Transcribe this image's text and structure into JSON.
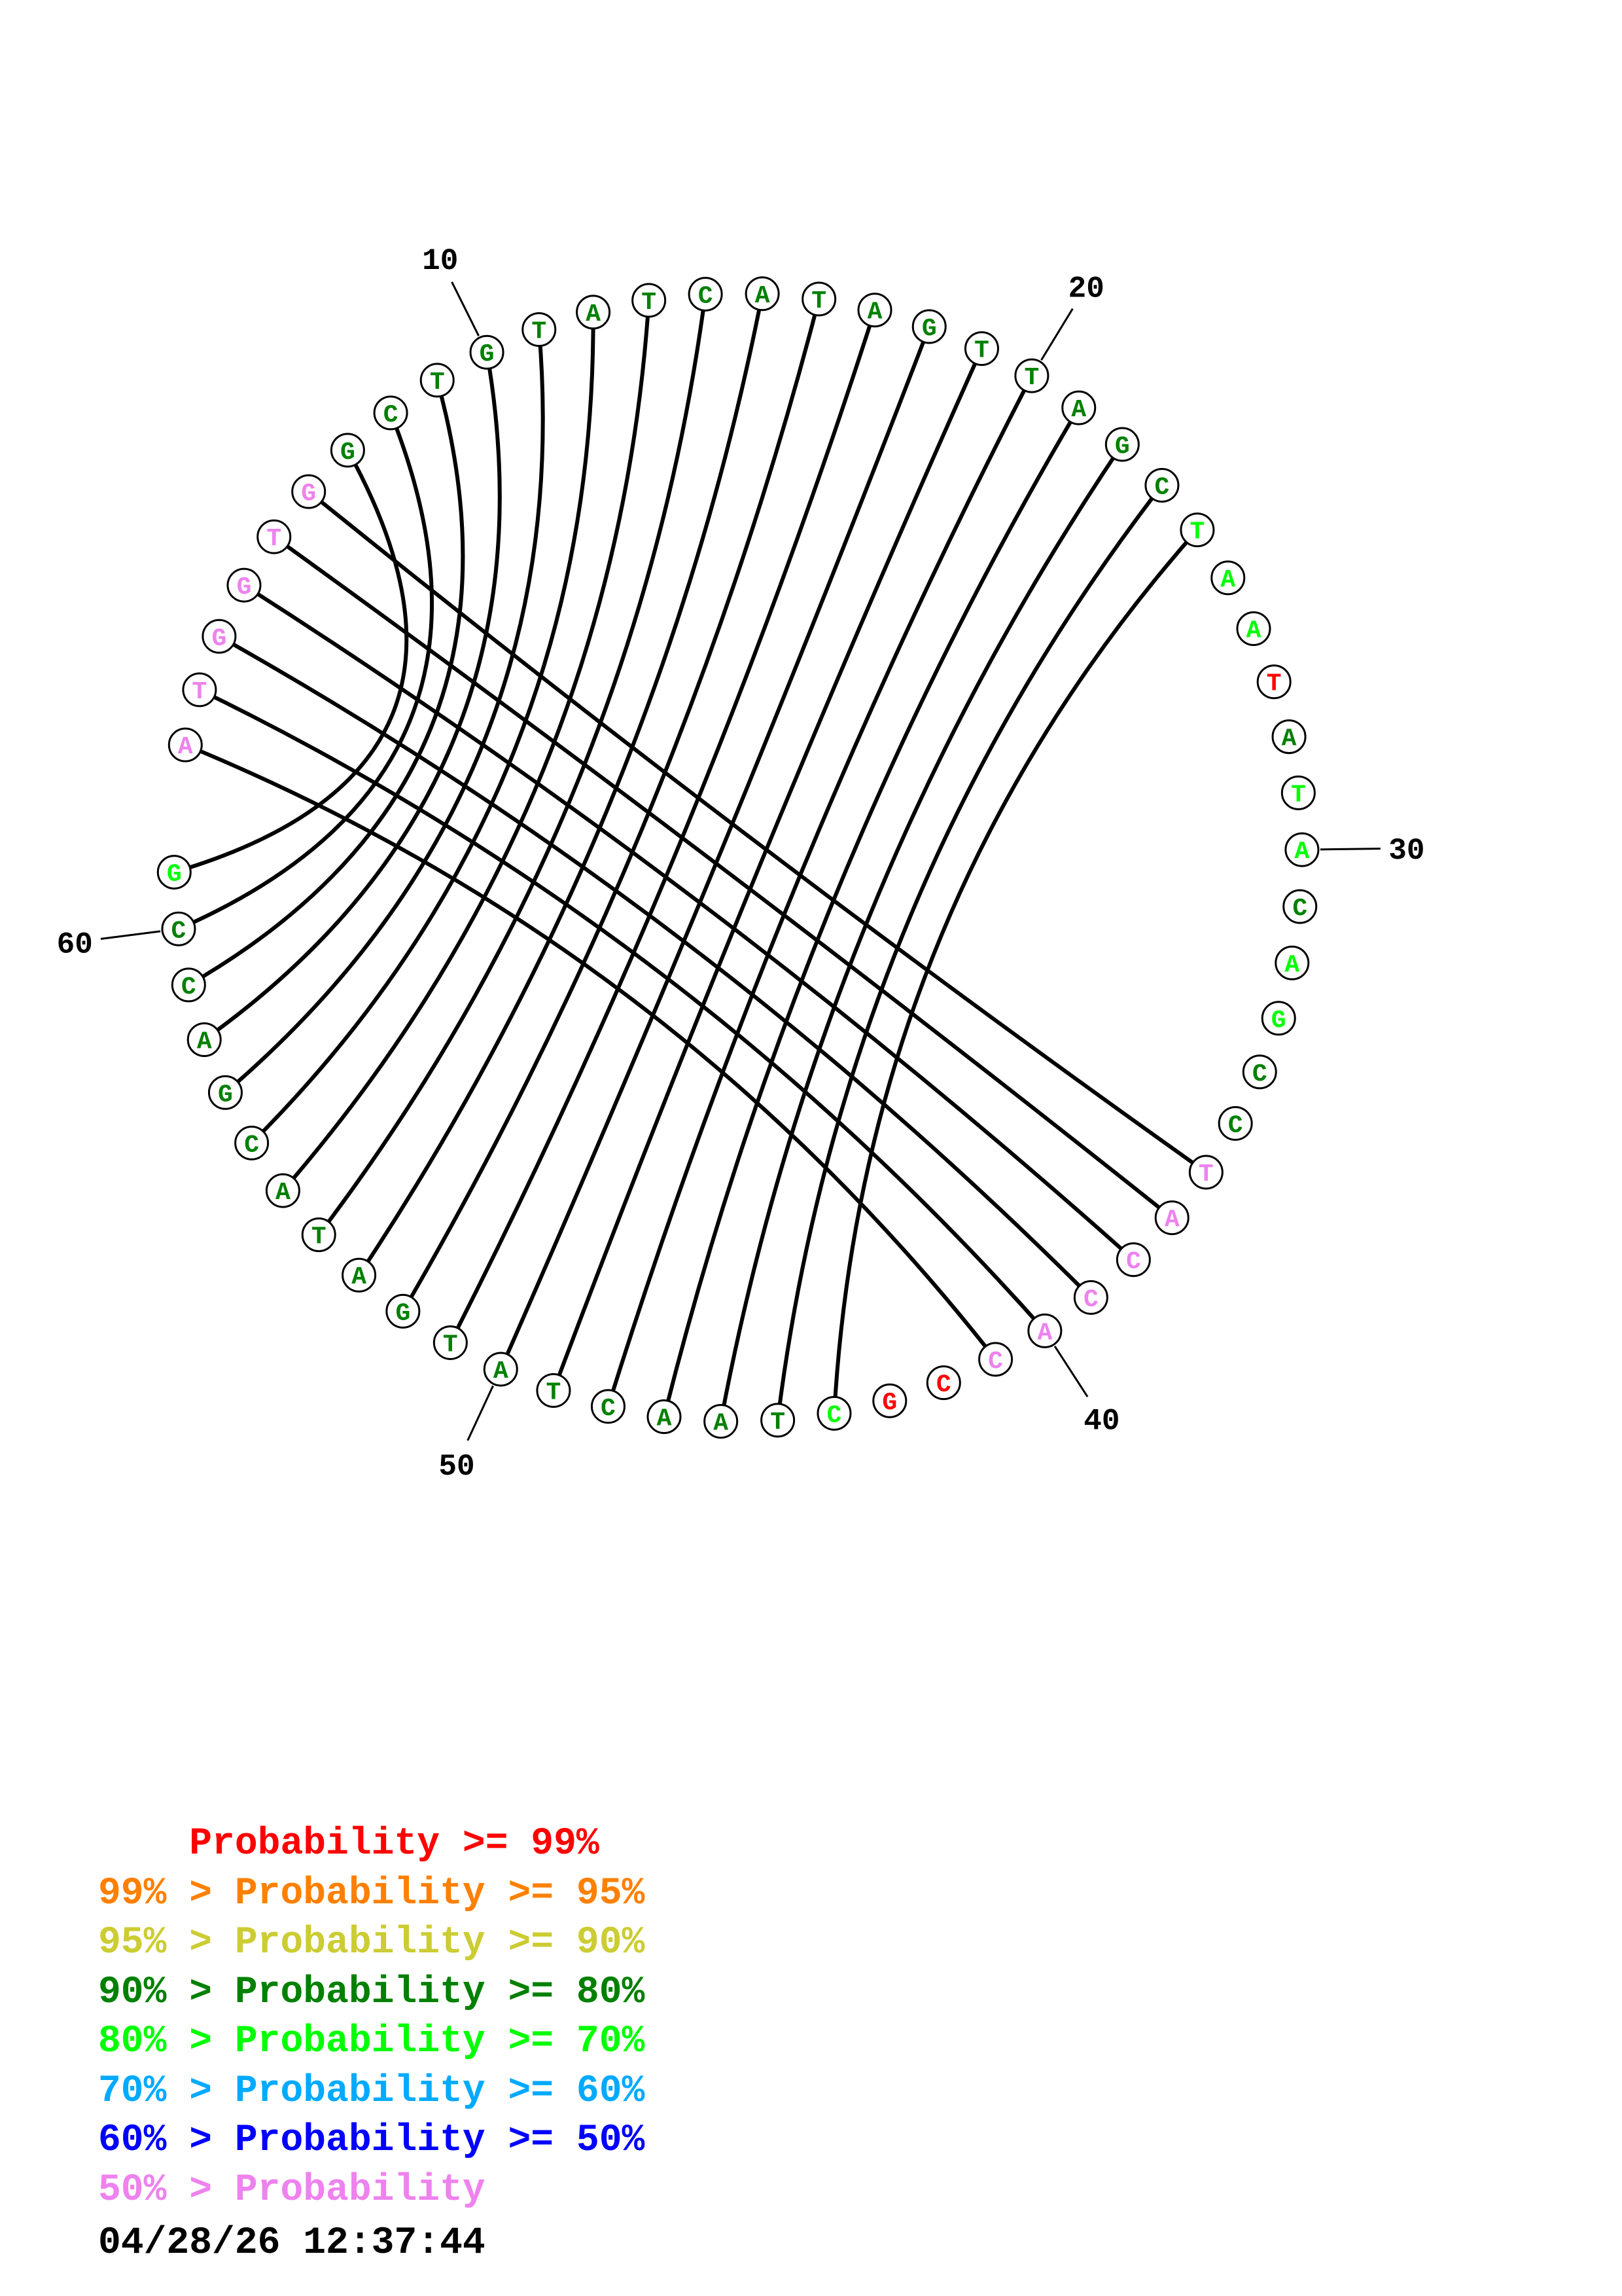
{
  "sequence": [
    "A",
    "T",
    "G",
    "G",
    "T",
    "G",
    "G",
    "C",
    "T",
    "G",
    "T",
    "A",
    "T",
    "C",
    "A",
    "T",
    "A",
    "G",
    "T",
    "T",
    "A",
    "G",
    "C",
    "T",
    "A",
    "A",
    "T",
    "A",
    "T",
    "A",
    "C",
    "A",
    "G",
    "C",
    "C",
    "T",
    "A",
    "C",
    "C",
    "A",
    "C",
    "C",
    "G",
    "C",
    "T",
    "A",
    "A",
    "C",
    "T",
    "A",
    "T",
    "G",
    "A",
    "T",
    "A",
    "C",
    "G",
    "A",
    "C",
    "C",
    "G"
  ],
  "nucleotide_colors": [
    "#ee82ee",
    "#ee82ee",
    "#ee82ee",
    "#ee82ee",
    "#ee82ee",
    "#ee82ee",
    "#008000",
    "#008000",
    "#008000",
    "#008000",
    "#008000",
    "#008000",
    "#008000",
    "#008000",
    "#008000",
    "#008000",
    "#008000",
    "#008000",
    "#008000",
    "#008000",
    "#008000",
    "#008000",
    "#008000",
    "#00ff00",
    "#00ff00",
    "#00ff00",
    "#ff0000",
    "#008000",
    "#00ff00",
    "#00ff00",
    "#008000",
    "#00ff00",
    "#00ff00",
    "#008000",
    "#008000",
    "#ee82ee",
    "#ee82ee",
    "#ee82ee",
    "#ee82ee",
    "#ee82ee",
    "#ee82ee",
    "#ff0000",
    "#ff0000",
    "#00ff00",
    "#008000",
    "#008000",
    "#008000",
    "#008000",
    "#008000",
    "#008000",
    "#008000",
    "#008000",
    "#008000",
    "#008000",
    "#008000",
    "#008000",
    "#008000",
    "#008000",
    "#008000",
    "#008000",
    "#00ff00"
  ],
  "pairs": [
    [
      1,
      41
    ],
    [
      2,
      40
    ],
    [
      3,
      39
    ],
    [
      4,
      38
    ],
    [
      5,
      37
    ],
    [
      6,
      36
    ],
    [
      7,
      61
    ],
    [
      8,
      60
    ],
    [
      9,
      59
    ],
    [
      10,
      58
    ],
    [
      11,
      57
    ],
    [
      12,
      56
    ],
    [
      13,
      55
    ],
    [
      14,
      54
    ],
    [
      15,
      53
    ],
    [
      16,
      52
    ],
    [
      17,
      51
    ],
    [
      18,
      50
    ],
    [
      19,
      49
    ],
    [
      20,
      48
    ],
    [
      21,
      47
    ],
    [
      22,
      46
    ],
    [
      23,
      45
    ],
    [
      24,
      44
    ]
  ],
  "position_labels": [
    {
      "index": 10,
      "text": "10"
    },
    {
      "index": 20,
      "text": "20"
    },
    {
      "index": 30,
      "text": "30"
    },
    {
      "index": 40,
      "text": "40"
    },
    {
      "index": 50,
      "text": "50"
    },
    {
      "index": 60,
      "text": "60"
    }
  ],
  "legend": [
    {
      "prefix": "    ",
      "prob": "Probability",
      "suffix": " >= 99%",
      "color": "#ff0000"
    },
    {
      "prefix": "99% > ",
      "prob": "Probability",
      "suffix": " >= 95%",
      "color": "#ff8000"
    },
    {
      "prefix": "95% > ",
      "prob": "Probability",
      "suffix": " >= 90%",
      "color": "#cccc33"
    },
    {
      "prefix": "90% > ",
      "prob": "Probability",
      "suffix": " >= 80%",
      "color": "#008000"
    },
    {
      "prefix": "80% > ",
      "prob": "Probability",
      "suffix": " >= 70%",
      "color": "#00ff00"
    },
    {
      "prefix": "70% > ",
      "prob": "Probability",
      "suffix": " >= 60%",
      "color": "#00aaff"
    },
    {
      "prefix": "60% > ",
      "prob": "Probability",
      "suffix": " >= 50%",
      "color": "#0000ff"
    },
    {
      "prefix": "50% > ",
      "prob": "Probability",
      "suffix": "",
      "color": "#ee82ee"
    }
  ],
  "legend_texts": {
    "row1": "    Probability >= 99%",
    "row2": "99% > Probability >= 95%",
    "row3": "95% > Probability >= 90%",
    "row4": "90% > Probability >= 80%",
    "row5": "80% > Probability >= 70%",
    "row6": "70% > Probability >= 60%",
    "row7": "60% > Probability >= 50%",
    "row8": "50% > Probability"
  },
  "timestamp": "04/28/26 12:37:44"
}
